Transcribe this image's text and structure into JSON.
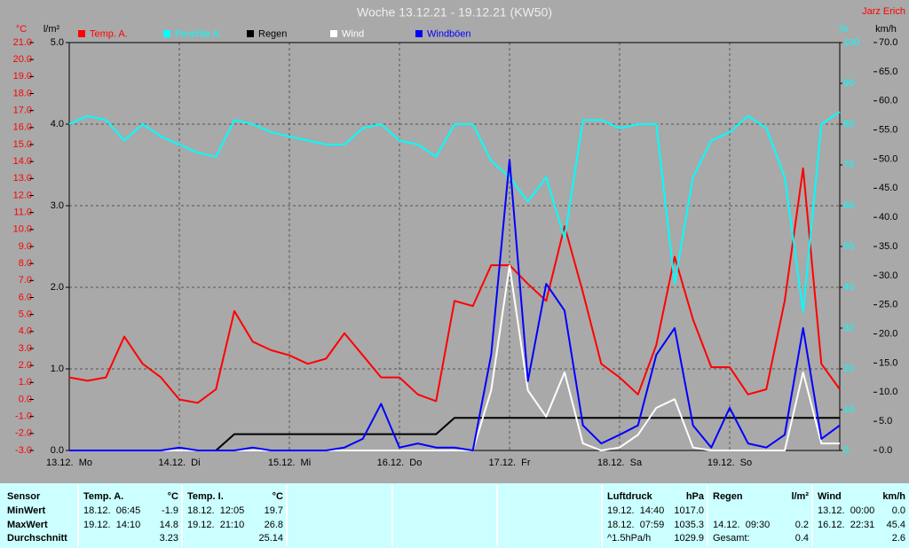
{
  "chart_data": {
    "type": "line",
    "title": "Woche 13.12.21 - 19.12.21 (KW50)",
    "author": "Jarz Erich",
    "x": [
      0,
      4,
      8,
      12,
      16,
      20,
      24,
      28,
      32,
      36,
      40,
      44,
      48,
      52,
      56,
      60,
      64,
      68,
      72,
      76,
      80,
      84,
      88,
      92,
      96,
      100,
      104,
      108,
      112,
      116,
      120,
      124,
      128,
      132,
      136,
      140,
      144,
      148,
      152,
      156,
      160,
      164,
      168
    ],
    "xlim": [
      0,
      168
    ],
    "xticks": [
      {
        "value": 0,
        "label": "13.12.  Mo"
      },
      {
        "value": 24,
        "label": "14.12.  Di"
      },
      {
        "value": 48,
        "label": "15.12.  Mi"
      },
      {
        "value": 72,
        "label": "16.12.  Do"
      },
      {
        "value": 96,
        "label": "17.12.  Fr"
      },
      {
        "value": 120,
        "label": "18.12.  Sa"
      },
      {
        "value": 144,
        "label": "19.12.  So"
      }
    ],
    "grid": true,
    "axes": [
      {
        "label": "°C",
        "color": "#ff0000",
        "lim": [
          -3,
          21
        ],
        "ticks": [
          {
            "value": -3,
            "label": "-3.0"
          },
          {
            "value": -2,
            "label": "-2.0"
          },
          {
            "value": -1,
            "label": "-1.0"
          },
          {
            "value": 0,
            "label": "0.0"
          },
          {
            "value": 1,
            "label": "1.0"
          },
          {
            "value": 2,
            "label": "2.0"
          },
          {
            "value": 3,
            "label": "3.0"
          },
          {
            "value": 4,
            "label": "4.0"
          },
          {
            "value": 5,
            "label": "5.0"
          },
          {
            "value": 6,
            "label": "6.0"
          },
          {
            "value": 7,
            "label": "7.0"
          },
          {
            "value": 8,
            "label": "8.0"
          },
          {
            "value": 9,
            "label": "9.0"
          },
          {
            "value": 10,
            "label": "10.0"
          },
          {
            "value": 11,
            "label": "11.0"
          },
          {
            "value": 12,
            "label": "12.0"
          },
          {
            "value": 13,
            "label": "13.0"
          },
          {
            "value": 14,
            "label": "14.0"
          },
          {
            "value": 15,
            "label": "15.0"
          },
          {
            "value": 16,
            "label": "16.0"
          },
          {
            "value": 17,
            "label": "17.0"
          },
          {
            "value": 18,
            "label": "18.0"
          },
          {
            "value": 19,
            "label": "19.0"
          },
          {
            "value": 20,
            "label": "20.0"
          },
          {
            "value": 21,
            "label": "21.0"
          }
        ]
      },
      {
        "label": "l/m²",
        "color": "#000000",
        "lim": [
          0,
          5
        ],
        "grid": true,
        "ticks": [
          {
            "value": 0,
            "label": "0.0"
          },
          {
            "value": 1,
            "label": "1.0"
          },
          {
            "value": 2,
            "label": "2.0"
          },
          {
            "value": 3,
            "label": "3.0"
          },
          {
            "value": 4,
            "label": "4.0"
          },
          {
            "value": 5,
            "label": "5.0"
          }
        ]
      },
      {
        "label": "%",
        "color": "#00ffff",
        "lim": [
          0,
          100
        ],
        "ticks": [
          0,
          10,
          20,
          30,
          40,
          50,
          60,
          70,
          80,
          90,
          100
        ]
      },
      {
        "label": "km/h",
        "color": "#000000",
        "lim": [
          0,
          70
        ],
        "ticks": [
          {
            "value": 0,
            "label": "0.0"
          },
          {
            "value": 5,
            "label": "5.0"
          },
          {
            "value": 10,
            "label": "10.0"
          },
          {
            "value": 15,
            "label": "15.0"
          },
          {
            "value": 20,
            "label": "20.0"
          },
          {
            "value": 25,
            "label": "25.0"
          },
          {
            "value": 30,
            "label": "30.0"
          },
          {
            "value": 35,
            "label": "35.0"
          },
          {
            "value": 40,
            "label": "40.0"
          },
          {
            "value": 45,
            "label": "45.0"
          },
          {
            "value": 50,
            "label": "50.0"
          },
          {
            "value": 55,
            "label": "55.0"
          },
          {
            "value": 60,
            "label": "60.0"
          },
          {
            "value": 65,
            "label": "65.0"
          },
          {
            "value": 70,
            "label": "70.0"
          }
        ]
      }
    ],
    "series": [
      {
        "name": "Temp. A.",
        "color": "#ff0000",
        "axis": 0,
        "values": [
          1.3,
          1.1,
          1.3,
          3.7,
          2.1,
          1.3,
          0.0,
          -0.2,
          0.6,
          5.2,
          3.4,
          2.9,
          2.6,
          2.1,
          2.4,
          3.9,
          2.6,
          1.3,
          1.3,
          0.3,
          -0.1,
          5.8,
          5.5,
          7.9,
          7.9,
          6.8,
          5.8,
          10.2,
          6.3,
          2.1,
          1.3,
          0.3,
          3.2,
          8.4,
          4.7,
          1.9,
          1.9,
          0.3,
          0.6,
          5.8,
          13.6,
          2.1,
          0.6
        ]
      },
      {
        "name": "Feuchte A.",
        "color": "#00ffff",
        "axis": 2,
        "values": [
          80,
          82,
          81,
          76,
          80,
          77,
          75,
          73,
          72,
          81,
          80,
          78,
          77,
          76,
          75,
          75,
          79,
          80,
          76,
          75,
          72,
          80,
          80,
          71,
          67,
          61,
          67,
          52,
          81,
          81,
          79,
          80,
          80,
          41,
          67,
          76,
          78,
          82,
          79,
          67,
          34,
          80,
          83
        ]
      },
      {
        "name": "Regen",
        "color": "#000000",
        "axis": 1,
        "values": [
          0,
          0,
          0,
          0,
          0,
          0,
          0,
          0,
          0,
          0.2,
          0.2,
          0.2,
          0.2,
          0.2,
          0.2,
          0.2,
          0.2,
          0.2,
          0.2,
          0.2,
          0.2,
          0.4,
          0.4,
          0.4,
          0.4,
          0.4,
          0.4,
          0.4,
          0.4,
          0.4,
          0.4,
          0.4,
          0.4,
          0.4,
          0.4,
          0.4,
          0.4,
          0.4,
          0.4,
          0.4,
          0.4,
          0.4,
          0.4
        ]
      },
      {
        "name": "Wind",
        "color": "#ffffff",
        "axis": 3,
        "values": [
          0,
          0,
          0,
          0,
          0,
          0,
          0,
          0,
          0,
          0,
          0,
          0,
          0,
          0,
          0,
          0,
          0,
          0,
          0,
          0,
          0,
          0,
          0,
          10.3,
          31.7,
          10.3,
          5.8,
          13.4,
          1.2,
          0,
          0.5,
          2.7,
          7.3,
          8.8,
          0.5,
          0,
          0,
          0,
          0,
          0,
          13.4,
          1.2,
          1.2
        ]
      },
      {
        "name": "Windböen",
        "color": "#0000ff",
        "axis": 3,
        "values": [
          0,
          0,
          0,
          0,
          0,
          0,
          0.5,
          0,
          0,
          0,
          0.5,
          0,
          0,
          0,
          0,
          0.5,
          2,
          8,
          0.5,
          1.2,
          0.5,
          0.5,
          0,
          16.4,
          49.9,
          11.9,
          28.6,
          24,
          4.3,
          1.2,
          2.7,
          4.3,
          16.4,
          21,
          4.3,
          0.5,
          7.3,
          1.2,
          0.5,
          2.7,
          21,
          2,
          4.3
        ]
      }
    ]
  },
  "table": {
    "sensor_header": "Sensor",
    "row_labels": [
      "MinWert",
      "MaxWert",
      "Durchschnitt"
    ],
    "columns": [
      {
        "name": "Temp. A.",
        "unit": "°C",
        "rows": [
          {
            "time": "18.12.  06:45",
            "value": "-1.9"
          },
          {
            "time": "19.12.  14:10",
            "value": "14.8"
          },
          {
            "value": "3.23"
          }
        ]
      },
      {
        "name": "Temp. I.",
        "unit": "°C",
        "rows": [
          {
            "time": "18.12.  12:05",
            "value": "19.7"
          },
          {
            "time": "19.12.  21:10",
            "value": "26.8"
          },
          {
            "value": "25.14"
          }
        ]
      },
      {
        "name": "Luftdruck",
        "unit": "hPa",
        "rows": [
          {
            "time": "19.12.  14:40",
            "value": "1017.0"
          },
          {
            "time": "18.12.  07:59",
            "value": "1035.3"
          },
          {
            "time": "^1.5hPa/h",
            "value": "1029.9"
          }
        ]
      },
      {
        "name": "Regen",
        "unit": "l/m²",
        "rows": [
          null,
          {
            "time": "14.12.  09:30",
            "value": "0.2"
          },
          {
            "time": "Gesamt:",
            "value": "0.4"
          }
        ]
      },
      {
        "name": "Wind",
        "unit": "km/h",
        "rows": [
          {
            "time": "13.12.  00:00",
            "value": "0.0"
          },
          {
            "time": "16.12.  22:31",
            "value": "45.4"
          },
          {
            "value": "2.6"
          }
        ]
      }
    ]
  }
}
